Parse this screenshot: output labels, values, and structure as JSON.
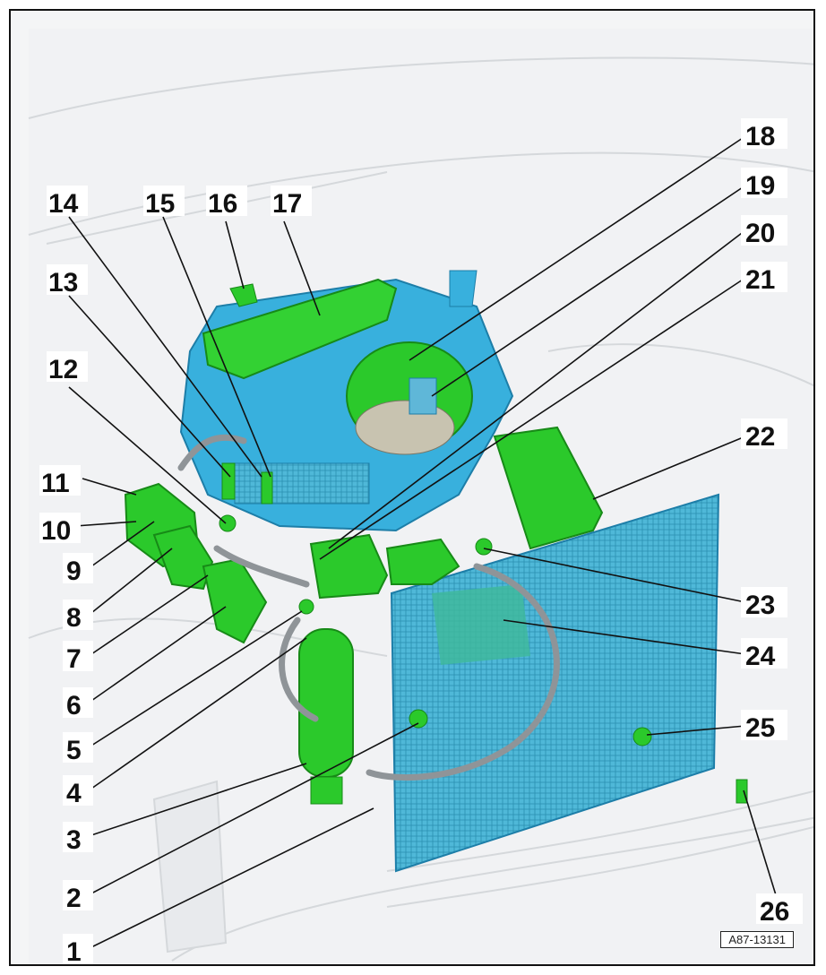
{
  "figure": {
    "reference": "A87-13131",
    "callouts": [
      "1",
      "2",
      "3",
      "4",
      "5",
      "6",
      "7",
      "8",
      "9",
      "10",
      "11",
      "12",
      "13",
      "14",
      "15",
      "16",
      "17",
      "18",
      "19",
      "20",
      "21",
      "22",
      "23",
      "24",
      "25",
      "26"
    ]
  },
  "colors": {
    "highlight_green": "#22cc22",
    "highlight_blue": "#33aadd",
    "ghost_gray": "#d9dcdf"
  }
}
